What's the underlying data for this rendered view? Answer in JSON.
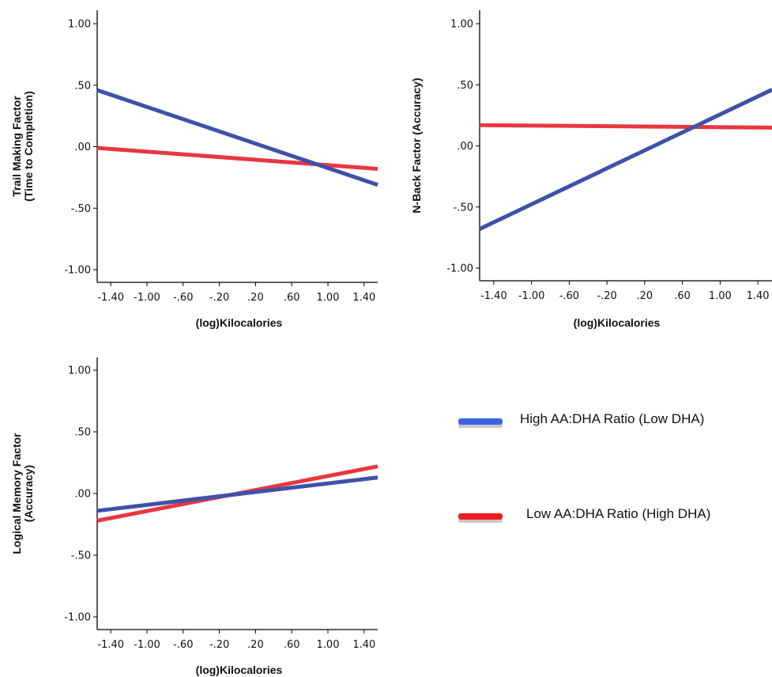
{
  "chart_data": [
    {
      "type": "line",
      "xlabel": "(log)Kilocalories",
      "ylabel": [
        "Trail Making Factor",
        "(Time to Completion)"
      ],
      "xlim": [
        -1.55,
        1.55
      ],
      "ylim": [
        -1.1,
        1.1
      ],
      "xticks": [
        -1.4,
        -1.0,
        -0.6,
        -0.2,
        0.2,
        0.6,
        1.0,
        1.4
      ],
      "xtick_labels": [
        "-1.40",
        "-1.00",
        "-.60",
        "-.20",
        ".20",
        ".60",
        "1.00",
        "1.40"
      ],
      "yticks": [
        1.0,
        0.5,
        0.0,
        -0.5,
        -1.0
      ],
      "ytick_labels": [
        "1.00",
        ".50",
        ".00",
        "-.50",
        "-1.00"
      ],
      "series": [
        {
          "key": "high",
          "color": "#3f51a8",
          "x": [
            -1.55,
            1.55
          ],
          "y": [
            0.46,
            -0.31
          ]
        },
        {
          "key": "low",
          "color": "#e8373f",
          "x": [
            -1.55,
            1.55
          ],
          "y": [
            -0.01,
            -0.18
          ]
        }
      ]
    },
    {
      "type": "line",
      "xlabel": "(log)Kilocalories",
      "ylabel": [
        "N-Back Factor (Accuracy)"
      ],
      "xlim": [
        -1.55,
        1.55
      ],
      "ylim": [
        -1.1,
        1.1
      ],
      "xticks": [
        -1.4,
        -1.0,
        -0.6,
        -0.2,
        0.2,
        0.6,
        1.0,
        1.4
      ],
      "xtick_labels": [
        "-1.40",
        "-1.00",
        "-.60",
        "-.20",
        ".20",
        ".60",
        "1.00",
        "1.40"
      ],
      "yticks": [
        1.0,
        0.5,
        0.0,
        -0.5,
        -1.0
      ],
      "ytick_labels": [
        "1.00",
        ".50",
        ".00",
        "-.50",
        "-1.00"
      ],
      "series": [
        {
          "key": "high",
          "color": "#3f51a8",
          "x": [
            -1.55,
            1.55
          ],
          "y": [
            -0.68,
            0.46
          ]
        },
        {
          "key": "low",
          "color": "#e8373f",
          "x": [
            -1.55,
            1.55
          ],
          "y": [
            0.17,
            0.15
          ]
        }
      ]
    },
    {
      "type": "line",
      "xlabel": "(log)Kilocalories",
      "ylabel": [
        "Logical Memory Factor",
        "(Accuracy)"
      ],
      "xlim": [
        -1.55,
        1.55
      ],
      "ylim": [
        -1.1,
        1.1
      ],
      "xticks": [
        -1.4,
        -1.0,
        -0.6,
        -0.2,
        0.2,
        0.6,
        1.0,
        1.4
      ],
      "xtick_labels": [
        "-1.40",
        "-1.00",
        "-.60",
        "-.20",
        ".20",
        ".60",
        "1.00",
        "1.40"
      ],
      "yticks": [
        1.0,
        0.5,
        0.0,
        -0.5,
        -1.0
      ],
      "ytick_labels": [
        "1.00",
        ".50",
        ".00",
        "-.50",
        "-1.00"
      ],
      "series": [
        {
          "key": "high",
          "color": "#3f51a8",
          "x": [
            -1.55,
            1.55
          ],
          "y": [
            -0.14,
            0.13
          ]
        },
        {
          "key": "low",
          "color": "#e8373f",
          "x": [
            -1.55,
            1.55
          ],
          "y": [
            -0.22,
            0.22
          ]
        }
      ]
    }
  ],
  "legend": [
    {
      "key": "high",
      "label": "High AA:DHA Ratio (Low DHA)",
      "color": "#3d63e8"
    },
    {
      "key": "low",
      "label": "Low AA:DHA Ratio (High DHA)",
      "color": "#ee1c1c"
    }
  ]
}
